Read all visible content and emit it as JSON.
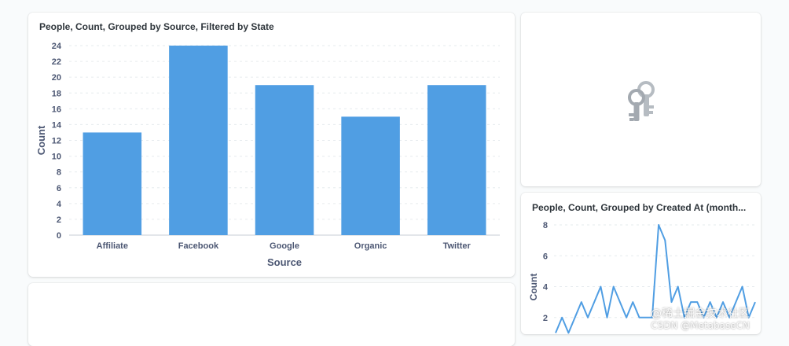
{
  "dashboard": {
    "bar_card": {
      "title": "People, Count, Grouped by Source, Filtered by State"
    },
    "locked_card": {
      "icon": "keys-icon"
    },
    "line_card": {
      "title": "People, Count, Grouped by Created At (month..."
    },
    "watermark": {
      "line1": "@稀土掘金技术社区",
      "line2": "CSDN @MetabaseCN"
    }
  },
  "colors": {
    "bar": "#509ee3",
    "line": "#509ee3",
    "axis_text": "#4c5773",
    "grid": "#e6ebee"
  },
  "chart_data": [
    {
      "type": "bar",
      "title": "People, Count, Grouped by Source, Filtered by State",
      "categories": [
        "Affiliate",
        "Facebook",
        "Google",
        "Organic",
        "Twitter"
      ],
      "values": [
        13,
        24,
        19,
        15,
        19
      ],
      "xlabel": "Source",
      "ylabel": "Count",
      "ylim": [
        0,
        24
      ],
      "yticks": [
        0,
        2,
        4,
        6,
        8,
        10,
        12,
        14,
        16,
        18,
        20,
        22,
        24
      ],
      "grid": true
    },
    {
      "type": "line",
      "title": "People, Count, Grouped by Created At (month...",
      "ylabel": "Count",
      "ylim": [
        0,
        8
      ],
      "yticks": [
        2,
        4,
        6,
        8
      ],
      "values": [
        1,
        2,
        1,
        2,
        3,
        2,
        3,
        4,
        2,
        4,
        3,
        2,
        3,
        2,
        2,
        2,
        8,
        7,
        3,
        4,
        2,
        3,
        3,
        2,
        3,
        2,
        3,
        2,
        3,
        4,
        2,
        3
      ],
      "grid": true
    }
  ]
}
